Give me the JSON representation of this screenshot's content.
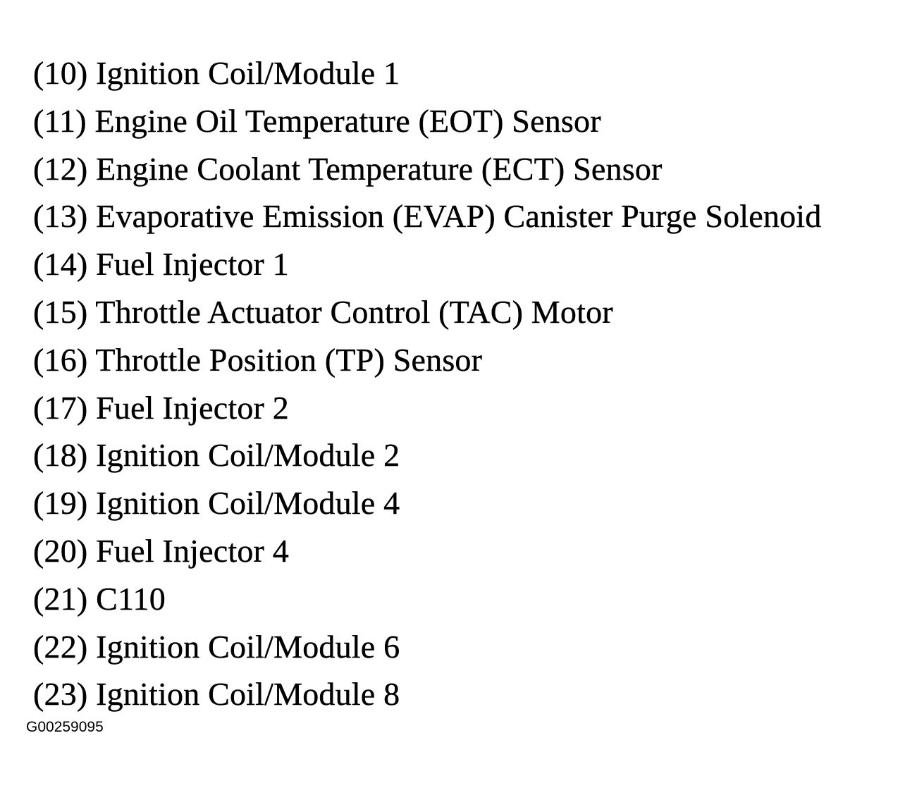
{
  "legend": [
    {
      "num": "(10)",
      "label": "Ignition Coil/Module 1"
    },
    {
      "num": "(11)",
      "label": "Engine Oil Temperature (EOT) Sensor"
    },
    {
      "num": "(12)",
      "label": "Engine Coolant Temperature (ECT) Sensor"
    },
    {
      "num": "(13)",
      "label": "Evaporative Emission (EVAP) Canister Purge Solenoid"
    },
    {
      "num": "(14)",
      "label": "Fuel Injector 1"
    },
    {
      "num": "(15)",
      "label": "Throttle Actuator Control (TAC) Motor"
    },
    {
      "num": "(16)",
      "label": "Throttle Position (TP) Sensor"
    },
    {
      "num": "(17)",
      "label": "Fuel Injector 2"
    },
    {
      "num": "(18)",
      "label": "Ignition Coil/Module 2"
    },
    {
      "num": "(19)",
      "label": "Ignition Coil/Module 4"
    },
    {
      "num": "(20)",
      "label": "Fuel Injector 4"
    },
    {
      "num": "(21)",
      "label": "C110"
    },
    {
      "num": "(22)",
      "label": "Ignition Coil/Module 6"
    },
    {
      "num": "(23)",
      "label": "Ignition Coil/Module 8"
    }
  ],
  "figure_id": "G00259095"
}
